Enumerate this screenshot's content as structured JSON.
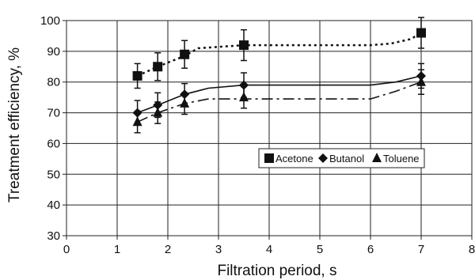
{
  "chart_data": {
    "type": "scatter",
    "title": "",
    "xlabel": "Filtration period, s",
    "ylabel": "Treatment efficiency, %",
    "xlim": [
      0,
      8
    ],
    "ylim": [
      30,
      100
    ],
    "x_ticks": [
      0,
      1,
      2,
      3,
      4,
      5,
      6,
      7,
      8
    ],
    "y_ticks": [
      30,
      40,
      50,
      60,
      70,
      80,
      90,
      100
    ],
    "grid": true,
    "legend": {
      "position": "right-middle",
      "entries": [
        "Acetone",
        "Butanol",
        "Toluene"
      ]
    },
    "series": [
      {
        "name": "Acetone",
        "marker": "square",
        "line": "dotted",
        "x": [
          1.4,
          1.8,
          2.33,
          3.5,
          7.0
        ],
        "y": [
          82,
          85,
          89,
          92,
          96
        ],
        "error": [
          4,
          4.5,
          4.5,
          5,
          5
        ],
        "trend": [
          [
            1.4,
            82
          ],
          [
            1.8,
            85
          ],
          [
            2.33,
            88.5
          ],
          [
            2.6,
            91
          ],
          [
            3.5,
            92
          ],
          [
            6.0,
            92
          ],
          [
            6.4,
            92.5
          ],
          [
            6.8,
            94
          ],
          [
            7.0,
            96
          ]
        ]
      },
      {
        "name": "Butanol",
        "marker": "diamond",
        "line": "solid",
        "x": [
          1.4,
          1.8,
          2.33,
          3.5,
          7.0
        ],
        "y": [
          70,
          72.5,
          76,
          79,
          82
        ],
        "error": [
          4,
          4,
          3.5,
          4,
          4
        ],
        "trend": [
          [
            1.4,
            70
          ],
          [
            1.8,
            72.5
          ],
          [
            2.33,
            76
          ],
          [
            2.8,
            78
          ],
          [
            3.5,
            79
          ],
          [
            6.0,
            79
          ],
          [
            6.5,
            80
          ],
          [
            7.0,
            82
          ]
        ]
      },
      {
        "name": "Toluene",
        "marker": "triangle",
        "line": "dash-dot",
        "x": [
          1.4,
          1.8,
          2.33,
          3.5,
          7.0
        ],
        "y": [
          67,
          70,
          73,
          75,
          80
        ],
        "error": [
          3.5,
          3.5,
          3.5,
          3.5,
          4
        ],
        "trend": [
          [
            1.4,
            67
          ],
          [
            1.8,
            70
          ],
          [
            2.33,
            73
          ],
          [
            2.8,
            74.5
          ],
          [
            3.5,
            74.5
          ],
          [
            6.0,
            74.5
          ],
          [
            6.5,
            77
          ],
          [
            7.0,
            80
          ]
        ]
      }
    ]
  }
}
